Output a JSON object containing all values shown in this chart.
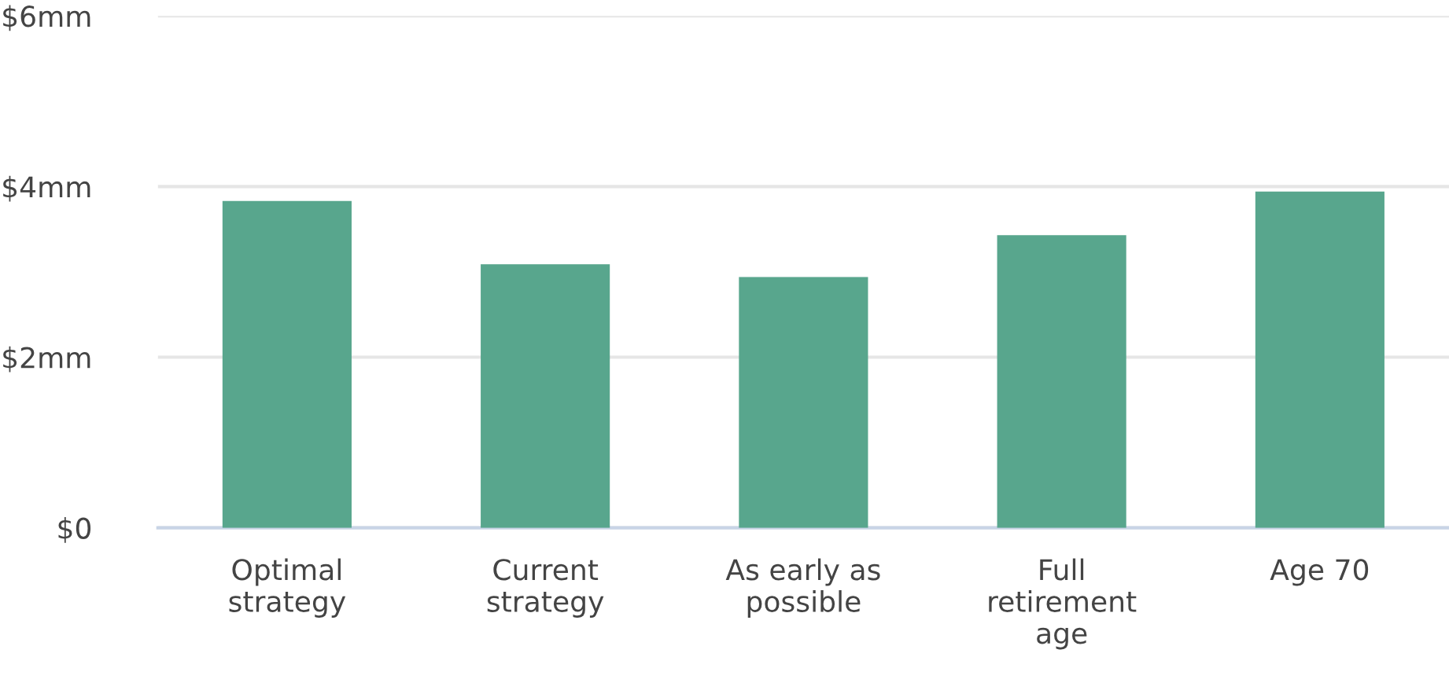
{
  "chart_data": {
    "type": "bar",
    "categories": [
      "Optimal\nstrategy",
      "Current\nstrategy",
      "As early as\npossible",
      "Full\nretirement\nage",
      "Age 70"
    ],
    "values": [
      3.83,
      3.09,
      2.94,
      3.43,
      3.94
    ],
    "color": "#58a68d",
    "ylim": [
      0,
      6
    ],
    "yticks": [
      {
        "value": 0,
        "label": "$0"
      },
      {
        "value": 2,
        "label": "$2mm"
      },
      {
        "value": 4,
        "label": "$4mm"
      },
      {
        "value": 6,
        "label": "$6mm"
      }
    ],
    "grid": "y"
  }
}
